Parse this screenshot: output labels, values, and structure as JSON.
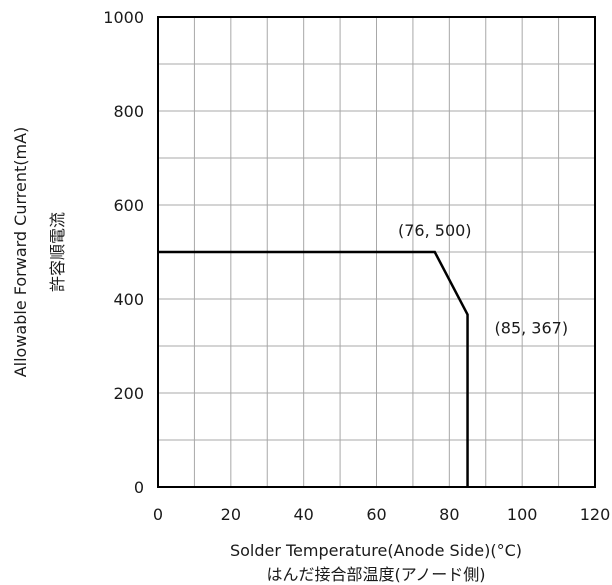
{
  "chart_data": {
    "type": "line",
    "title": "",
    "xlabel": "Solder Temperature(Anode Side)(°C)",
    "xlabel_ja": "はんだ接合部温度(アノード側)",
    "ylabel": "Allowable Forward Current(mA)",
    "ylabel_ja": "許容順電流",
    "xlim": [
      0,
      120
    ],
    "ylim": [
      0,
      1000
    ],
    "x_ticks": [
      0,
      20,
      40,
      60,
      80,
      100,
      120
    ],
    "y_ticks": [
      0,
      200,
      400,
      600,
      800,
      1000
    ],
    "x_grid_step": 10,
    "y_grid_step": 100,
    "grid": true,
    "series": [
      {
        "points": [
          {
            "x": 0,
            "y": 500
          },
          {
            "x": 76,
            "y": 500
          },
          {
            "x": 85,
            "y": 367
          },
          {
            "x": 85,
            "y": 0
          }
        ],
        "color": "#000000"
      }
    ],
    "annotations": [
      {
        "text": "(76, 500)",
        "x": 76,
        "y": 500
      },
      {
        "text": "(85, 367)",
        "x": 85,
        "y": 367
      }
    ]
  }
}
